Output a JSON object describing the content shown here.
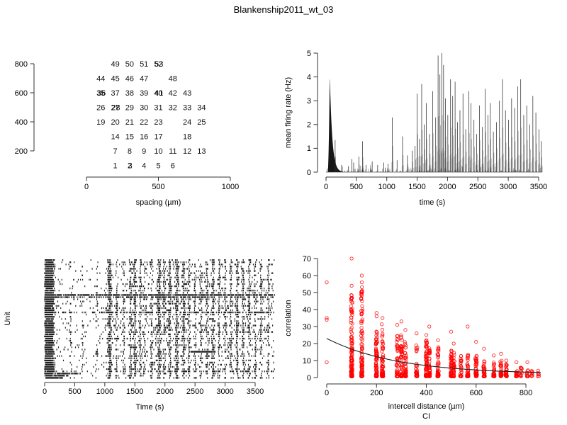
{
  "title": "Blankenship2011_wt_03",
  "colors": {
    "background": "#ffffff",
    "foreground": "#000000",
    "axis": "#333333",
    "trace": "#2a2a2a",
    "raster_mark": "#000000",
    "scatter_marker": "#ff0000",
    "fit_line": "#222222"
  },
  "chart_data": [
    {
      "id": "unit-positions",
      "type": "scatter",
      "position": "top-left",
      "xlabel": "spacing (µm)",
      "ylabel": "",
      "x_ticks": [
        0,
        500,
        1000
      ],
      "y_ticks": [
        200,
        400,
        600,
        800
      ],
      "xlim": [
        0,
        1000
      ],
      "ylim": [
        100,
        800
      ],
      "units": [
        {
          "n": 1,
          "x": 200,
          "y": 100
        },
        {
          "n": 2,
          "x": 300,
          "y": 100
        },
        {
          "n": 3,
          "x": 304,
          "y": 100
        },
        {
          "n": 4,
          "x": 400,
          "y": 100
        },
        {
          "n": 5,
          "x": 500,
          "y": 100
        },
        {
          "n": 6,
          "x": 600,
          "y": 100
        },
        {
          "n": 7,
          "x": 200,
          "y": 200
        },
        {
          "n": 8,
          "x": 300,
          "y": 200
        },
        {
          "n": 9,
          "x": 400,
          "y": 200
        },
        {
          "n": 10,
          "x": 500,
          "y": 200
        },
        {
          "n": 11,
          "x": 600,
          "y": 200
        },
        {
          "n": 12,
          "x": 700,
          "y": 200
        },
        {
          "n": 13,
          "x": 800,
          "y": 200
        },
        {
          "n": 14,
          "x": 200,
          "y": 300
        },
        {
          "n": 15,
          "x": 300,
          "y": 300
        },
        {
          "n": 16,
          "x": 400,
          "y": 300
        },
        {
          "n": 17,
          "x": 500,
          "y": 300
        },
        {
          "n": 18,
          "x": 700,
          "y": 300
        },
        {
          "n": 19,
          "x": 100,
          "y": 400
        },
        {
          "n": 20,
          "x": 200,
          "y": 400
        },
        {
          "n": 21,
          "x": 300,
          "y": 400
        },
        {
          "n": 22,
          "x": 400,
          "y": 400
        },
        {
          "n": 23,
          "x": 500,
          "y": 400
        },
        {
          "n": 24,
          "x": 700,
          "y": 400
        },
        {
          "n": 25,
          "x": 800,
          "y": 400
        },
        {
          "n": 26,
          "x": 100,
          "y": 500
        },
        {
          "n": 27,
          "x": 200,
          "y": 500
        },
        {
          "n": 28,
          "x": 204,
          "y": 500
        },
        {
          "n": 29,
          "x": 300,
          "y": 500
        },
        {
          "n": 30,
          "x": 400,
          "y": 500
        },
        {
          "n": 31,
          "x": 500,
          "y": 500
        },
        {
          "n": 32,
          "x": 600,
          "y": 500
        },
        {
          "n": 33,
          "x": 700,
          "y": 500
        },
        {
          "n": 34,
          "x": 800,
          "y": 500
        },
        {
          "n": 35,
          "x": 100,
          "y": 600
        },
        {
          "n": 36,
          "x": 104,
          "y": 600
        },
        {
          "n": 37,
          "x": 200,
          "y": 600
        },
        {
          "n": 38,
          "x": 300,
          "y": 600
        },
        {
          "n": 39,
          "x": 400,
          "y": 600
        },
        {
          "n": 40,
          "x": 500,
          "y": 600
        },
        {
          "n": 41,
          "x": 504,
          "y": 600
        },
        {
          "n": 42,
          "x": 600,
          "y": 600
        },
        {
          "n": 43,
          "x": 700,
          "y": 600
        },
        {
          "n": 44,
          "x": 100,
          "y": 700
        },
        {
          "n": 45,
          "x": 200,
          "y": 700
        },
        {
          "n": 46,
          "x": 300,
          "y": 700
        },
        {
          "n": 47,
          "x": 400,
          "y": 700
        },
        {
          "n": 48,
          "x": 600,
          "y": 700
        },
        {
          "n": 49,
          "x": 200,
          "y": 800
        },
        {
          "n": 50,
          "x": 300,
          "y": 800
        },
        {
          "n": 51,
          "x": 400,
          "y": 800
        },
        {
          "n": 52,
          "x": 500,
          "y": 800
        },
        {
          "n": 53,
          "x": 504,
          "y": 800
        }
      ]
    },
    {
      "id": "mean-firing-rate",
      "type": "line",
      "position": "top-right",
      "xlabel": "time (s)",
      "ylabel": "mean firing rate (Hz)",
      "x_ticks": [
        0,
        500,
        1000,
        1500,
        2000,
        2500,
        3000,
        3500
      ],
      "y_ticks": [
        0,
        1,
        2,
        3,
        4,
        5
      ],
      "xlim": [
        0,
        3560
      ],
      "ylim": [
        0,
        5.05
      ],
      "initial_burst": {
        "t_start": 28,
        "t_peak": 62,
        "height": 4.1,
        "decay_tau": 40
      },
      "peaks": [
        [
          150,
          1.35
        ],
        [
          255,
          0.3
        ],
        [
          370,
          0.25
        ],
        [
          425,
          0.55
        ],
        [
          455,
          0.4
        ],
        [
          540,
          0.65
        ],
        [
          600,
          1.3
        ],
        [
          660,
          0.3
        ],
        [
          760,
          0.45
        ],
        [
          850,
          0.3
        ],
        [
          950,
          0.4
        ],
        [
          1020,
          0.35
        ],
        [
          1090,
          2.3
        ],
        [
          1170,
          0.5
        ],
        [
          1260,
          1.5
        ],
        [
          1340,
          0.7
        ],
        [
          1420,
          0.9
        ],
        [
          1465,
          1.1
        ],
        [
          1500,
          3.3
        ],
        [
          1540,
          1.4
        ],
        [
          1575,
          3.7
        ],
        [
          1615,
          2.0
        ],
        [
          1650,
          2.9
        ],
        [
          1705,
          1.6
        ],
        [
          1755,
          3.4
        ],
        [
          1805,
          2.3
        ],
        [
          1845,
          4.9
        ],
        [
          1875,
          4.1
        ],
        [
          1905,
          5.0
        ],
        [
          1935,
          4.5
        ],
        [
          1965,
          3.1
        ],
        [
          2005,
          2.4
        ],
        [
          2050,
          3.9
        ],
        [
          2085,
          3.2
        ],
        [
          2125,
          3.8
        ],
        [
          2165,
          2.1
        ],
        [
          2205,
          2.6
        ],
        [
          2255,
          3.3
        ],
        [
          2300,
          1.8
        ],
        [
          2350,
          3.4
        ],
        [
          2385,
          2.9
        ],
        [
          2435,
          2.2
        ],
        [
          2480,
          1.6
        ],
        [
          2525,
          2.8
        ],
        [
          2575,
          1.9
        ],
        [
          2620,
          3.5
        ],
        [
          2665,
          2.4
        ],
        [
          2705,
          2.9
        ],
        [
          2755,
          1.7
        ],
        [
          2805,
          2.1
        ],
        [
          2855,
          3.0
        ],
        [
          2905,
          3.9
        ],
        [
          2955,
          2.6
        ],
        [
          3005,
          2.2
        ],
        [
          3055,
          3.1
        ],
        [
          3105,
          2.7
        ],
        [
          3155,
          3.6
        ],
        [
          3205,
          3.9
        ],
        [
          3255,
          2.4
        ],
        [
          3305,
          2.8
        ],
        [
          3355,
          2.0
        ],
        [
          3405,
          3.2
        ],
        [
          3455,
          2.5
        ],
        [
          3505,
          1.8
        ],
        [
          3545,
          1.3
        ]
      ],
      "noise": {
        "count": 170,
        "max_height": 0.3
      }
    },
    {
      "id": "spike-raster",
      "type": "raster",
      "position": "bottom-left",
      "xlabel": "Time (s)",
      "ylabel": "Unit",
      "x_ticks": [
        0,
        500,
        1000,
        1500,
        2000,
        2500,
        3000,
        3500
      ],
      "xlim": [
        0,
        3820
      ],
      "n_units": 55,
      "initial_burst": {
        "t_center": 70,
        "amp": 0.85,
        "sigma": 45
      },
      "bursts": [
        [
          60,
          0.9,
          35
        ],
        [
          130,
          0.45,
          15
        ],
        [
          260,
          0.2,
          10
        ],
        [
          430,
          0.3,
          12
        ],
        [
          630,
          0.28,
          10
        ],
        [
          870,
          0.28,
          10
        ],
        [
          1080,
          0.7,
          20
        ],
        [
          1200,
          0.28,
          10
        ],
        [
          1320,
          0.28,
          10
        ],
        [
          1430,
          0.4,
          12
        ],
        [
          1500,
          0.55,
          15
        ],
        [
          1590,
          0.38,
          12
        ],
        [
          1660,
          0.33,
          10
        ],
        [
          1780,
          0.42,
          12
        ],
        [
          1900,
          0.6,
          20
        ],
        [
          1990,
          0.38,
          12
        ],
        [
          2080,
          0.48,
          15
        ],
        [
          2200,
          0.6,
          18
        ],
        [
          2310,
          0.5,
          15
        ],
        [
          2400,
          0.45,
          12
        ],
        [
          2500,
          0.33,
          10
        ],
        [
          2600,
          0.38,
          12
        ],
        [
          2700,
          0.42,
          12
        ],
        [
          2800,
          0.5,
          15
        ],
        [
          2900,
          0.38,
          10
        ],
        [
          3000,
          0.33,
          10
        ],
        [
          3100,
          0.45,
          12
        ],
        [
          3200,
          0.5,
          12
        ],
        [
          3300,
          0.42,
          12
        ],
        [
          3400,
          0.45,
          12
        ],
        [
          3500,
          0.4,
          10
        ],
        [
          3600,
          0.38,
          10
        ],
        [
          3720,
          0.33,
          10
        ]
      ],
      "tonic_units": [
        {
          "unit": 16,
          "rate": 0.5
        },
        {
          "unit": 17,
          "rate": 0.28
        },
        {
          "unit": 24,
          "rate": 0.2
        }
      ],
      "segments": [
        {
          "unit": 42,
          "t0": 2430,
          "t1": 2840,
          "rate": 0.9
        },
        {
          "unit": 51,
          "t0": 0,
          "t1": 200,
          "rate": 0.4
        },
        {
          "unit": 52,
          "t0": 0,
          "t1": 600,
          "rate": 0.45
        },
        {
          "unit": 53,
          "t0": 0,
          "t1": 400,
          "rate": 0.5
        },
        {
          "unit": 54,
          "t0": 0,
          "t1": 300,
          "rate": 0.5
        }
      ]
    },
    {
      "id": "correlation-vs-distance",
      "type": "scatter",
      "position": "bottom-right",
      "xlabel": "intercell distance (µm)",
      "xlabel2": "CI",
      "ylabel": "correlation",
      "x_ticks": [
        0,
        200,
        400,
        600,
        800
      ],
      "y_ticks": [
        0,
        10,
        20,
        30,
        40,
        50,
        60,
        70
      ],
      "xlim": [
        0,
        860
      ],
      "ylim": [
        0,
        70
      ],
      "marker": {
        "shape": "open-circle",
        "color": "#ff0000",
        "radius": 2.2
      },
      "columns": [
        {
          "x": 100,
          "n": 130,
          "max": 49
        },
        {
          "x": 141,
          "n": 100,
          "max": 55
        },
        {
          "x": 200,
          "n": 85,
          "max": 30
        },
        {
          "x": 224,
          "n": 75,
          "max": 33
        },
        {
          "x": 283,
          "n": 45,
          "max": 26
        },
        {
          "x": 300,
          "n": 55,
          "max": 25
        },
        {
          "x": 316,
          "n": 50,
          "max": 22
        },
        {
          "x": 361,
          "n": 35,
          "max": 20
        },
        {
          "x": 400,
          "n": 65,
          "max": 22
        },
        {
          "x": 412,
          "n": 45,
          "max": 18
        },
        {
          "x": 447,
          "n": 50,
          "max": 18
        },
        {
          "x": 500,
          "n": 60,
          "max": 17
        },
        {
          "x": 510,
          "n": 40,
          "max": 15
        },
        {
          "x": 539,
          "n": 25,
          "max": 13
        },
        {
          "x": 566,
          "n": 35,
          "max": 14
        },
        {
          "x": 600,
          "n": 45,
          "max": 13
        },
        {
          "x": 632,
          "n": 40,
          "max": 12
        },
        {
          "x": 671,
          "n": 25,
          "max": 9
        },
        {
          "x": 700,
          "n": 35,
          "max": 10
        },
        {
          "x": 721,
          "n": 30,
          "max": 8
        },
        {
          "x": 762,
          "n": 18,
          "max": 6
        },
        {
          "x": 781,
          "n": 14,
          "max": 6
        },
        {
          "x": 806,
          "n": 12,
          "max": 5
        },
        {
          "x": 825,
          "n": 8,
          "max": 4
        },
        {
          "x": 849,
          "n": 5,
          "max": 3
        }
      ],
      "outliers": [
        [
          0,
          56
        ],
        [
          0,
          35
        ],
        [
          0,
          34
        ],
        [
          0,
          9
        ],
        [
          100,
          70
        ],
        [
          100,
          54
        ],
        [
          141,
          60
        ],
        [
          141,
          56
        ],
        [
          200,
          38
        ],
        [
          200,
          36
        ],
        [
          224,
          35
        ],
        [
          283,
          31
        ],
        [
          300,
          33
        ],
        [
          316,
          28
        ],
        [
          361,
          26
        ],
        [
          400,
          25
        ],
        [
          412,
          30
        ],
        [
          447,
          22
        ],
        [
          500,
          27
        ],
        [
          510,
          20
        ],
        [
          566,
          30
        ],
        [
          600,
          21
        ],
        [
          632,
          17
        ],
        [
          671,
          13
        ],
        [
          700,
          14
        ],
        [
          721,
          10
        ],
        [
          762,
          9
        ],
        [
          806,
          9
        ],
        [
          849,
          4
        ]
      ],
      "fit": {
        "type": "exponential",
        "a": 21,
        "tau": 280,
        "c": 2
      }
    }
  ]
}
